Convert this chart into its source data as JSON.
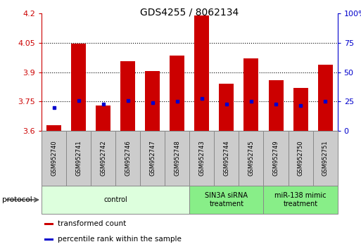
{
  "title": "GDS4255 / 8062134",
  "samples": [
    "GSM952740",
    "GSM952741",
    "GSM952742",
    "GSM952746",
    "GSM952747",
    "GSM952748",
    "GSM952743",
    "GSM952744",
    "GSM952745",
    "GSM952749",
    "GSM952750",
    "GSM952751"
  ],
  "transformed_count": [
    3.63,
    4.045,
    3.73,
    3.955,
    3.905,
    3.985,
    4.19,
    3.84,
    3.97,
    3.86,
    3.82,
    3.94
  ],
  "percentile_rank": [
    3.72,
    3.755,
    3.735,
    3.755,
    3.745,
    3.752,
    3.765,
    3.738,
    3.75,
    3.738,
    3.728,
    3.75
  ],
  "ylim_left": [
    3.6,
    4.2
  ],
  "ylim_right": [
    0,
    100
  ],
  "yticks_left": [
    3.6,
    3.75,
    3.9,
    4.05,
    4.2
  ],
  "yticks_right": [
    0,
    25,
    50,
    75,
    100
  ],
  "ytick_labels_left": [
    "3.6",
    "3.75",
    "3.9",
    "4.05",
    "4.2"
  ],
  "ytick_labels_right": [
    "0",
    "25",
    "50",
    "75",
    "100%"
  ],
  "grid_values": [
    3.75,
    3.9,
    4.05
  ],
  "bar_color": "#cc0000",
  "dot_color": "#0000cc",
  "bar_bottom": 3.6,
  "bar_width": 0.6,
  "groups": [
    {
      "label": "control",
      "indices": [
        0,
        1,
        2,
        3,
        4,
        5
      ],
      "color": "#ddffdd"
    },
    {
      "label": "SIN3A siRNA\ntreatment",
      "indices": [
        6,
        7,
        8
      ],
      "color": "#88ee88"
    },
    {
      "label": "miR-138 mimic\ntreatment",
      "indices": [
        9,
        10,
        11
      ],
      "color": "#88ee88"
    }
  ],
  "legend_items": [
    {
      "label": "transformed count",
      "color": "#cc0000"
    },
    {
      "label": "percentile rank within the sample",
      "color": "#0000cc"
    }
  ],
  "bg_color": "#ffffff",
  "plot_bg": "#ffffff",
  "title_fontsize": 10,
  "tick_label_fontsize": 8,
  "axis_color_left": "#cc0000",
  "axis_color_right": "#0000cc",
  "sample_box_color": "#cccccc",
  "sample_box_edge": "#888888"
}
